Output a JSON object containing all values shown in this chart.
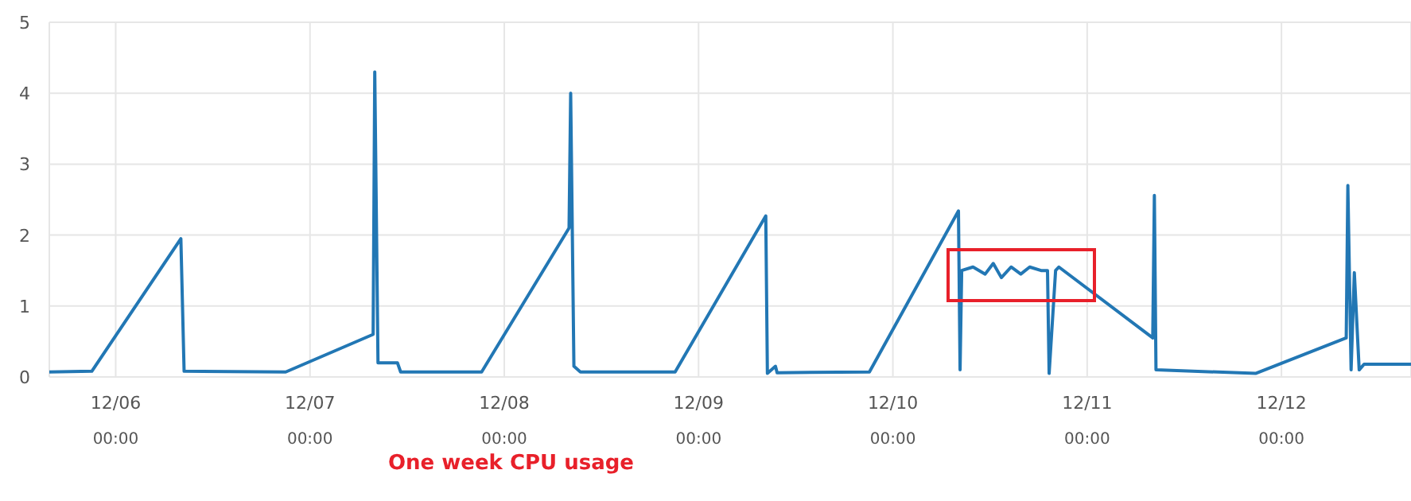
{
  "chart_data": {
    "type": "line",
    "title": "One week CPU usage",
    "x": [
      "--12-05T15:48",
      "--12-05T21:03",
      "--12-06T08:03",
      "--12-06T08:27",
      "--12-06T21:00",
      "--12-07T07:48",
      "--12-07T08:00",
      "--12-07T08:24",
      "--12-07T10:48",
      "--12-07T11:12",
      "--12-07T21:12",
      "--12-08T08:00",
      "--12-08T08:12",
      "--12-08T08:36",
      "--12-08T09:24",
      "--12-08T21:06",
      "--12-09T08:18",
      "--12-09T08:30",
      "--12-09T09:30",
      "--12-09T09:42",
      "--12-09T21:06",
      "--12-10T08:06",
      "--12-10T08:18",
      "--12-10T08:30",
      "--12-10T09:54",
      "--12-10T11:24",
      "--12-10T12:24",
      "--12-10T13:24",
      "--12-10T14:36",
      "--12-10T15:48",
      "--12-10T16:54",
      "--12-10T18:18",
      "--12-10T19:06",
      "--12-10T19:18",
      "--12-10T20:06",
      "--12-10T20:30",
      "--12-11T08:06",
      "--12-11T08:18",
      "--12-11T08:30",
      "--12-11T20:48",
      "--12-12T08:00",
      "--12-12T08:12",
      "--12-12T08:36",
      "--12-12T09:00",
      "--12-12T09:36",
      "--12-12T10:12",
      "--12-12T16:00"
    ],
    "series": [
      {
        "color": "#2277b4",
        "values": [
          0.07,
          0.08,
          1.95,
          0.08,
          0.07,
          0.6,
          4.3,
          0.2,
          0.2,
          0.07,
          0.07,
          2.1,
          4.0,
          0.15,
          0.07,
          0.07,
          2.27,
          0.05,
          0.15,
          0.06,
          0.07,
          2.34,
          0.1,
          1.5,
          1.55,
          1.45,
          1.6,
          1.4,
          1.55,
          1.45,
          1.55,
          1.5,
          1.5,
          0.05,
          1.5,
          1.55,
          0.55,
          2.56,
          0.1,
          0.05,
          0.55,
          2.7,
          0.1,
          1.47,
          0.1,
          0.18,
          0.18
        ]
      }
    ],
    "xlim": [
      "--12-05T15:48",
      "--12-12T16:00"
    ],
    "xticks": [
      {
        "value": "--12-06T00:00",
        "label": "12/06\n00:00"
      },
      {
        "value": "--12-07T00:00",
        "label": "12/07\n00:00"
      },
      {
        "value": "--12-08T00:00",
        "label": "12/08\n00:00"
      },
      {
        "value": "--12-09T00:00",
        "label": "12/09\n00:00"
      },
      {
        "value": "--12-10T00:00",
        "label": "12/10\n00:00"
      },
      {
        "value": "--12-11T00:00",
        "label": "12/11\n00:00"
      },
      {
        "value": "--12-12T00:00",
        "label": "12/12\n00:00"
      }
    ],
    "ylim": [
      0,
      5
    ],
    "yticks": [
      0,
      1,
      2,
      3,
      4,
      5
    ],
    "grid": true,
    "marker": "none",
    "line_style": "solid",
    "legend": false
  }
}
